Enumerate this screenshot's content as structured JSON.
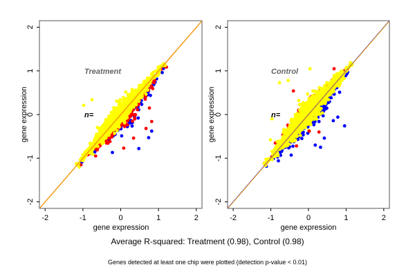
{
  "chart_data": [
    {
      "type": "scatter",
      "panel": "left",
      "title": "Treatment",
      "annotation": "n=",
      "xlabel": "gene expression",
      "ylabel": "gene expression",
      "xlim": [
        -2.15,
        2.15
      ],
      "ylim": [
        -2.15,
        2.15
      ],
      "xticks": [
        -2,
        -1,
        0,
        1,
        2
      ],
      "yticks": [
        -2,
        -1,
        0,
        1,
        2
      ],
      "grid": false,
      "reference_lines": [
        {
          "name": "identity",
          "slope": 1,
          "intercept": 0,
          "color": "#d2691e"
        },
        {
          "name": "fit",
          "slope": 1,
          "intercept": 0,
          "color": "#ffa500"
        }
      ],
      "series": [
        {
          "name": "blue",
          "color": "#0000ff",
          "range": [
            -1.1,
            1.15
          ],
          "spread": 0.12,
          "skew": "below-diagonal"
        },
        {
          "name": "red",
          "color": "#ff0000",
          "range": [
            -1.1,
            1.15
          ],
          "spread": 0.12,
          "skew": "below-diagonal"
        },
        {
          "name": "yellow",
          "color": "#ffff00",
          "range": [
            -1.15,
            1.15
          ],
          "spread": 0.1,
          "skew": "above-diagonal"
        }
      ],
      "outliers": [
        {
          "series": "blue",
          "x": 0.48,
          "y": -0.78
        },
        {
          "series": "blue",
          "x": 0.74,
          "y": -0.53
        },
        {
          "series": "blue",
          "x": 0.82,
          "y": -0.38
        },
        {
          "series": "red",
          "x": 0.67,
          "y": -0.32
        },
        {
          "series": "red",
          "x": 0.82,
          "y": -0.16
        },
        {
          "series": "red",
          "x": 0.76,
          "y": 0.15
        },
        {
          "series": "red",
          "x": 0.34,
          "y": -0.54
        },
        {
          "series": "red",
          "x": 0.08,
          "y": -0.77
        },
        {
          "series": "blue",
          "x": -0.22,
          "y": -0.87
        },
        {
          "series": "yellow",
          "x": -0.76,
          "y": 0.34
        },
        {
          "series": "yellow",
          "x": -0.98,
          "y": 0.21
        }
      ]
    },
    {
      "type": "scatter",
      "panel": "right",
      "title": "Control",
      "annotation": "n=",
      "xlabel": "gene expression",
      "ylabel": "gene expression",
      "xlim": [
        -2.15,
        2.15
      ],
      "ylim": [
        -2.15,
        2.15
      ],
      "xticks": [
        -2,
        -1,
        0,
        1,
        2
      ],
      "yticks": [
        -2,
        -1,
        0,
        1,
        2
      ],
      "grid": false,
      "reference_lines": [
        {
          "name": "identity",
          "slope": 1,
          "intercept": 0,
          "color": "#0000ff"
        },
        {
          "name": "fit",
          "slope": 1,
          "intercept": 0,
          "color": "#ffa500"
        }
      ],
      "series": [
        {
          "name": "blue",
          "color": "#0000ff",
          "range": [
            -1.15,
            1.15
          ],
          "spread": 0.12,
          "skew": "below-diagonal"
        },
        {
          "name": "red",
          "color": "#ff0000",
          "range": [
            -1.15,
            1.15
          ],
          "spread": 0.1,
          "skew": "above-diagonal"
        },
        {
          "name": "yellow",
          "color": "#ffff00",
          "range": [
            -1.15,
            1.15
          ],
          "spread": 0.12,
          "skew": "above-diagonal"
        }
      ],
      "outliers": [
        {
          "series": "blue",
          "x": 0.96,
          "y": -0.26
        },
        {
          "series": "blue",
          "x": 0.32,
          "y": -0.75
        },
        {
          "series": "blue",
          "x": 0.18,
          "y": -0.7
        },
        {
          "series": "blue",
          "x": 0.42,
          "y": -0.54
        },
        {
          "series": "blue",
          "x": 0.78,
          "y": -0.06
        },
        {
          "series": "blue",
          "x": 0.66,
          "y": -0.14
        },
        {
          "series": "blue",
          "x": -0.46,
          "y": -0.93
        },
        {
          "series": "red",
          "x": 0.28,
          "y": -0.4
        },
        {
          "series": "red",
          "x": 0.02,
          "y": -0.38
        },
        {
          "series": "red",
          "x": -0.32,
          "y": -0.72
        },
        {
          "series": "red",
          "x": 0.68,
          "y": 1.05
        },
        {
          "series": "red",
          "x": -0.4,
          "y": 0.54
        },
        {
          "series": "yellow",
          "x": 0.04,
          "y": 1.05
        },
        {
          "series": "yellow",
          "x": -0.77,
          "y": 0.73
        },
        {
          "series": "yellow",
          "x": -0.54,
          "y": 0.78
        },
        {
          "series": "yellow",
          "x": -1.01,
          "y": -0.58
        },
        {
          "series": "yellow",
          "x": -0.97,
          "y": -0.1
        }
      ]
    }
  ],
  "footer": {
    "summary": "Average R-squared: Treatment (0.98), Control (0.98)",
    "note": "Genes detected at least one chip were plotted (detection p-value < 0.01)"
  }
}
